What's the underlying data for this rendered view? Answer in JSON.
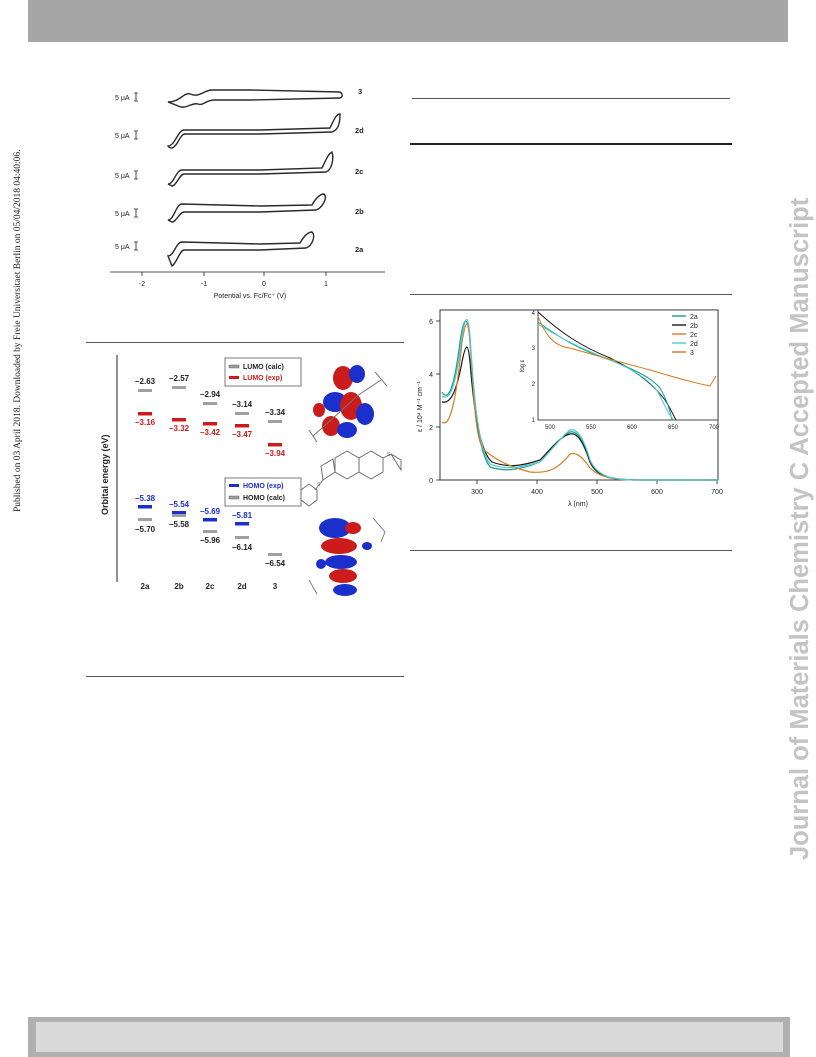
{
  "side_text_left": "Published on 03 April 2018. Downloaded by Freie Universitaet Berlin on 05/04/2018 04:40:06.",
  "side_text_right": "Journal of Materials Chemistry C Accepted Manuscript",
  "figures": {
    "cv": {
      "scale_label": "5 μA",
      "labels": [
        "3",
        "2d",
        "2c",
        "2b",
        "2a"
      ],
      "x_ticks": [
        "-2",
        "-1",
        "0",
        "1"
      ],
      "xlabel": "Potential vs. Fc/Fc⁺ (V)"
    },
    "energy": {
      "ylabel": "Orbital energy (eV)",
      "compounds": [
        "2a",
        "2b",
        "2c",
        "2d",
        "3"
      ],
      "legend_lumo": [
        "LUMO (calc)",
        "LUMO (exp)"
      ],
      "legend_homo": [
        "HOMO (exp)",
        "HOMO (calc)"
      ],
      "lumo_calc": [
        "−2.63",
        "−2.57",
        "−2.94",
        "−3.14",
        "−3.34"
      ],
      "lumo_exp": [
        "−3.16",
        "−3.32",
        "−3.42",
        "−3.47",
        "−3.94"
      ],
      "homo_exp": [
        "−5.38",
        "−5.54",
        "−5.69",
        "−5.81"
      ],
      "homo_calc": [
        "−5.70",
        "−5.58",
        "−5.96",
        "−6.14",
        "−6.54"
      ],
      "colors": {
        "calc": "#a0a0a0",
        "lumo_exp": "#cc1b1b",
        "homo_exp": "#1b2fcc"
      }
    },
    "absorption": {
      "xlabel": "λ (nm)",
      "ylabel": "ε / 10⁴ M⁻¹ cm⁻¹",
      "x_ticks": [
        "300",
        "400",
        "500",
        "600",
        "700"
      ],
      "y_ticks": [
        "0",
        "2",
        "4",
        "6"
      ],
      "inset_ylabel": "log ε",
      "inset_x_ticks": [
        "500",
        "550",
        "600",
        "650",
        "700"
      ],
      "inset_y_ticks": [
        "1",
        "2",
        "3",
        "4"
      ],
      "legend": [
        "2a",
        "2b",
        "2c",
        "2d",
        "3"
      ],
      "colors": [
        "#17a085",
        "#1a1a1a",
        "#d97a1e",
        "#4ec7d6",
        "#c9782b"
      ]
    }
  }
}
